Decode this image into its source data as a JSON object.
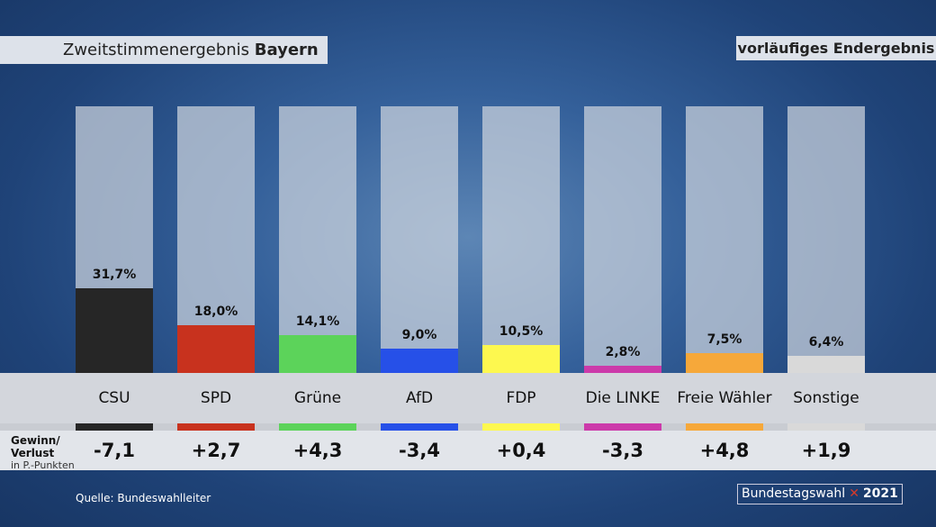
{
  "header": {
    "title_prefix": "Zweitstimmenergebnis",
    "title_region": "Bayern",
    "status": "vorläufiges Endergebnis"
  },
  "chart_data": {
    "type": "bar",
    "title": "Zweitstimmenergebnis Bayern",
    "ylim": [
      0,
      100
    ],
    "categories": [
      "CSU",
      "SPD",
      "Grüne",
      "AfD",
      "FDP",
      "Die LINKE",
      "Freie Wähler",
      "Sonstige"
    ],
    "values": [
      31.7,
      18.0,
      14.1,
      9.0,
      10.5,
      2.8,
      7.5,
      6.4
    ],
    "value_labels": [
      "31,7%",
      "18,0%",
      "14,1%",
      "9,0%",
      "10,5%",
      "2,8%",
      "7,5%",
      "6,4%"
    ],
    "colors": [
      "#262626",
      "#c8321e",
      "#5cd35a",
      "#2650e8",
      "#fdf84f",
      "#cc3aaa",
      "#f6a83a",
      "#d9d9d9"
    ],
    "change": [
      "-7,1",
      "+2,7",
      "+4,3",
      "-3,4",
      "+0,4",
      "-3,3",
      "+4,8",
      "+1,9"
    ],
    "change_values": [
      -7.1,
      2.7,
      4.3,
      -3.4,
      0.4,
      -3.3,
      4.8,
      1.9
    ]
  },
  "change_label": {
    "line1": "Gewinn/",
    "line2": "Verlust",
    "unit": "in P.-Punkten"
  },
  "footer": {
    "source": "Quelle:  Bundeswahlleiter",
    "logo_text": "Bundestagswahl",
    "logo_year": "2021",
    "logo_mark": "✕"
  }
}
